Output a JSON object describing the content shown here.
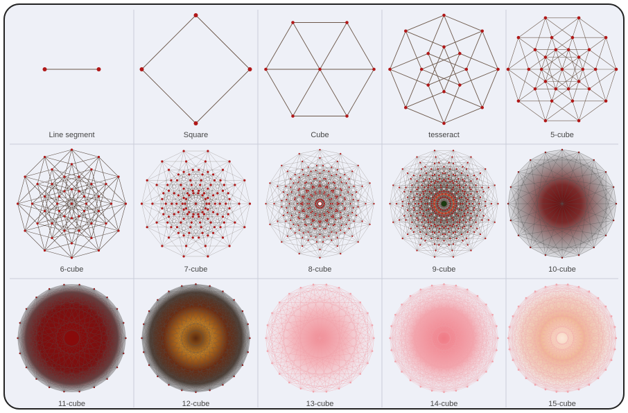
{
  "cells": [
    {
      "label": "Line segment"
    },
    {
      "label": "Square"
    },
    {
      "label": "Cube"
    },
    {
      "label": "tesseract"
    },
    {
      "label": "5-cube"
    },
    {
      "label": "6-cube"
    },
    {
      "label": "7-cube"
    },
    {
      "label": "8-cube"
    },
    {
      "label": "9-cube"
    },
    {
      "label": "10-cube"
    },
    {
      "label": "11-cube"
    },
    {
      "label": "12-cube"
    },
    {
      "label": "13-cube"
    },
    {
      "label": "14-cube"
    },
    {
      "label": "15-cube"
    }
  ]
}
